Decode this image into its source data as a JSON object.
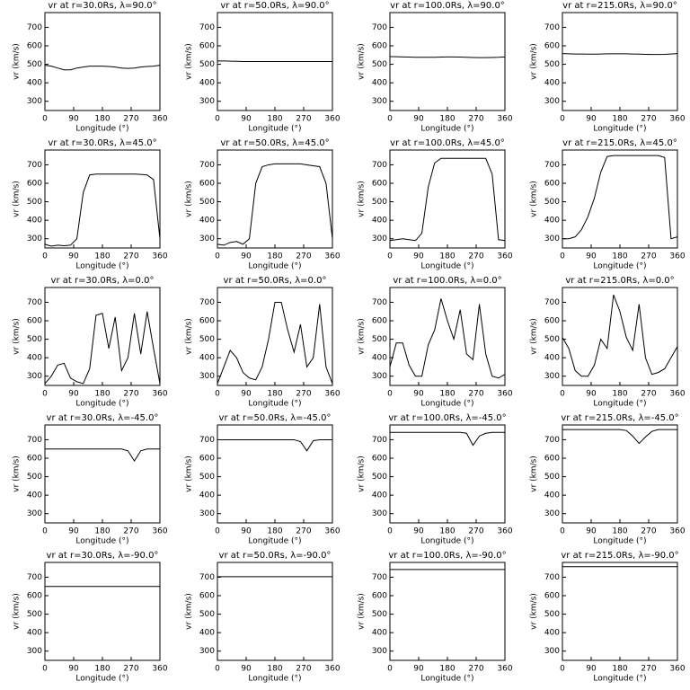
{
  "chart_data": [
    {
      "type": "line",
      "title": "vr at r=30.0Rs, λ=90.0°",
      "xlabel": "Longitude (°)",
      "ylabel": "vr (km/s)",
      "color": "#000000",
      "xlim": [
        0,
        360
      ],
      "ylim": [
        250,
        780
      ],
      "xticks": [
        0,
        90,
        180,
        270,
        360
      ],
      "yticks": [
        300,
        400,
        500,
        600,
        700
      ],
      "x": [
        0,
        20,
        40,
        60,
        80,
        100,
        120,
        140,
        160,
        180,
        200,
        220,
        240,
        260,
        280,
        300,
        320,
        340,
        360
      ],
      "values": [
        495,
        490,
        480,
        470,
        470,
        480,
        485,
        490,
        490,
        490,
        488,
        485,
        480,
        478,
        480,
        485,
        488,
        490,
        495
      ]
    },
    {
      "type": "line",
      "title": "vr at r=50.0Rs, λ=90.0°",
      "xlabel": "Longitude (°)",
      "ylabel": "vr (km/s)",
      "color": "#000000",
      "xlim": [
        0,
        360
      ],
      "ylim": [
        250,
        780
      ],
      "xticks": [
        0,
        90,
        180,
        270,
        360
      ],
      "yticks": [
        300,
        400,
        500,
        600,
        700
      ],
      "x": [
        0,
        20,
        40,
        60,
        80,
        100,
        120,
        140,
        160,
        180,
        200,
        220,
        240,
        260,
        280,
        300,
        320,
        340,
        360
      ],
      "values": [
        518,
        518,
        517,
        516,
        515,
        515,
        515,
        515,
        515,
        515,
        515,
        515,
        515,
        515,
        515,
        515,
        515,
        515,
        515
      ]
    },
    {
      "type": "line",
      "title": "vr at r=100.0Rs, λ=90.0°",
      "xlabel": "Longitude (°)",
      "ylabel": "vr (km/s)",
      "color": "#000000",
      "xlim": [
        0,
        360
      ],
      "ylim": [
        250,
        780
      ],
      "xticks": [
        0,
        90,
        180,
        270,
        360
      ],
      "yticks": [
        300,
        400,
        500,
        600,
        700
      ],
      "x": [
        0,
        20,
        40,
        60,
        80,
        100,
        120,
        140,
        160,
        180,
        200,
        220,
        240,
        260,
        280,
        300,
        320,
        340,
        360
      ],
      "values": [
        542,
        541,
        540,
        539,
        538,
        538,
        538,
        538,
        539,
        540,
        540,
        539,
        538,
        537,
        536,
        536,
        537,
        538,
        540
      ]
    },
    {
      "type": "line",
      "title": "vr at r=215.0Rs, λ=90.0°",
      "xlabel": "Longitude (°)",
      "ylabel": "vr (km/s)",
      "color": "#000000",
      "xlim": [
        0,
        360
      ],
      "ylim": [
        250,
        780
      ],
      "xticks": [
        0,
        90,
        180,
        270,
        360
      ],
      "yticks": [
        300,
        400,
        500,
        600,
        700
      ],
      "x": [
        0,
        20,
        40,
        60,
        80,
        100,
        120,
        140,
        160,
        180,
        200,
        220,
        240,
        260,
        280,
        300,
        320,
        340,
        360
      ],
      "values": [
        558,
        557,
        556,
        556,
        555,
        555,
        556,
        557,
        557,
        557,
        557,
        556,
        555,
        554,
        553,
        553,
        554,
        556,
        558
      ]
    },
    {
      "type": "line",
      "title": "vr at r=30.0Rs, λ=45.0°",
      "xlabel": "Longitude (°)",
      "ylabel": "vr (km/s)",
      "color": "#000000",
      "xlim": [
        0,
        360
      ],
      "ylim": [
        250,
        780
      ],
      "xticks": [
        0,
        90,
        180,
        270,
        360
      ],
      "yticks": [
        300,
        400,
        500,
        600,
        700
      ],
      "x": [
        0,
        20,
        40,
        60,
        80,
        100,
        120,
        140,
        160,
        180,
        200,
        220,
        240,
        260,
        280,
        300,
        320,
        340,
        360
      ],
      "values": [
        270,
        260,
        265,
        262,
        265,
        300,
        550,
        645,
        650,
        650,
        650,
        650,
        650,
        650,
        650,
        648,
        645,
        620,
        300
      ]
    },
    {
      "type": "line",
      "title": "vr at r=50.0Rs, λ=45.0°",
      "xlabel": "Longitude (°)",
      "ylabel": "vr (km/s)",
      "color": "#000000",
      "xlim": [
        0,
        360
      ],
      "ylim": [
        250,
        780
      ],
      "xticks": [
        0,
        90,
        180,
        270,
        360
      ],
      "yticks": [
        300,
        400,
        500,
        600,
        700
      ],
      "x": [
        0,
        20,
        40,
        60,
        80,
        100,
        120,
        140,
        160,
        180,
        200,
        220,
        240,
        260,
        280,
        300,
        320,
        340,
        360
      ],
      "values": [
        270,
        265,
        280,
        285,
        270,
        300,
        600,
        690,
        700,
        705,
        705,
        705,
        705,
        705,
        700,
        695,
        690,
        600,
        300
      ]
    },
    {
      "type": "line",
      "title": "vr at r=100.0Rs, λ=45.0°",
      "xlabel": "Longitude (°)",
      "ylabel": "vr (km/s)",
      "color": "#000000",
      "xlim": [
        0,
        360
      ],
      "ylim": [
        250,
        780
      ],
      "xticks": [
        0,
        90,
        180,
        270,
        360
      ],
      "yticks": [
        300,
        400,
        500,
        600,
        700
      ],
      "x": [
        0,
        20,
        40,
        60,
        80,
        100,
        120,
        140,
        160,
        180,
        200,
        220,
        240,
        260,
        280,
        300,
        320,
        340,
        360
      ],
      "values": [
        290,
        295,
        300,
        295,
        290,
        330,
        580,
        710,
        735,
        735,
        735,
        735,
        735,
        735,
        735,
        735,
        650,
        295,
        290
      ]
    },
    {
      "type": "line",
      "title": "vr at r=215.0Rs, λ=45.0°",
      "xlabel": "Longitude (°)",
      "ylabel": "vr (km/s)",
      "color": "#000000",
      "xlim": [
        0,
        360
      ],
      "ylim": [
        250,
        780
      ],
      "xticks": [
        0,
        90,
        180,
        270,
        360
      ],
      "yticks": [
        300,
        400,
        500,
        600,
        700
      ],
      "x": [
        0,
        20,
        40,
        60,
        80,
        100,
        120,
        140,
        160,
        180,
        200,
        220,
        240,
        260,
        280,
        300,
        320,
        340,
        360
      ],
      "values": [
        300,
        300,
        310,
        350,
        420,
        520,
        660,
        745,
        750,
        750,
        750,
        750,
        750,
        750,
        750,
        750,
        740,
        300,
        310
      ]
    },
    {
      "type": "line",
      "title": "vr at r=30.0Rs, λ=0.0°",
      "xlabel": "Longitude (°)",
      "ylabel": "vr (km/s)",
      "color": "#000000",
      "xlim": [
        0,
        360
      ],
      "ylim": [
        250,
        780
      ],
      "xticks": [
        0,
        90,
        180,
        270,
        360
      ],
      "yticks": [
        300,
        400,
        500,
        600,
        700
      ],
      "x": [
        0,
        20,
        40,
        60,
        80,
        100,
        120,
        140,
        160,
        180,
        200,
        220,
        240,
        260,
        280,
        300,
        320,
        340,
        360
      ],
      "values": [
        260,
        300,
        360,
        370,
        290,
        270,
        260,
        340,
        630,
        640,
        450,
        620,
        330,
        400,
        640,
        420,
        650,
        450,
        260
      ]
    },
    {
      "type": "line",
      "title": "vr at r=50.0Rs, λ=0.0°",
      "xlabel": "Longitude (°)",
      "ylabel": "vr (km/s)",
      "color": "#000000",
      "xlim": [
        0,
        360
      ],
      "ylim": [
        250,
        780
      ],
      "xticks": [
        0,
        90,
        180,
        270,
        360
      ],
      "yticks": [
        300,
        400,
        500,
        600,
        700
      ],
      "x": [
        0,
        20,
        40,
        60,
        80,
        100,
        120,
        140,
        160,
        180,
        200,
        220,
        240,
        260,
        280,
        300,
        320,
        340,
        360
      ],
      "values": [
        260,
        350,
        440,
        400,
        320,
        290,
        280,
        350,
        500,
        700,
        700,
        550,
        430,
        580,
        350,
        400,
        690,
        350,
        260
      ]
    },
    {
      "type": "line",
      "title": "vr at r=100.0Rs, λ=0.0°",
      "xlabel": "Longitude (°)",
      "ylabel": "vr (km/s)",
      "color": "#000000",
      "xlim": [
        0,
        360
      ],
      "ylim": [
        250,
        780
      ],
      "xticks": [
        0,
        90,
        180,
        270,
        360
      ],
      "yticks": [
        300,
        400,
        500,
        600,
        700
      ],
      "x": [
        0,
        20,
        40,
        60,
        80,
        100,
        120,
        140,
        160,
        180,
        200,
        220,
        240,
        260,
        280,
        300,
        320,
        340,
        360
      ],
      "values": [
        350,
        480,
        480,
        360,
        300,
        300,
        470,
        550,
        720,
        600,
        500,
        660,
        420,
        390,
        690,
        420,
        300,
        290,
        310
      ]
    },
    {
      "type": "line",
      "title": "vr at r=215.0Rs, λ=0.0°",
      "xlabel": "Longitude (°)",
      "ylabel": "vr (km/s)",
      "color": "#000000",
      "xlim": [
        0,
        360
      ],
      "ylim": [
        250,
        780
      ],
      "xticks": [
        0,
        90,
        180,
        270,
        360
      ],
      "yticks": [
        300,
        400,
        500,
        600,
        700
      ],
      "x": [
        0,
        20,
        40,
        60,
        80,
        100,
        120,
        140,
        160,
        180,
        200,
        220,
        240,
        260,
        280,
        300,
        320,
        340,
        360
      ],
      "values": [
        510,
        450,
        330,
        300,
        300,
        360,
        500,
        450,
        740,
        650,
        510,
        440,
        690,
        400,
        310,
        320,
        340,
        400,
        460
      ]
    },
    {
      "type": "line",
      "title": "vr at r=30.0Rs, λ=-45.0°",
      "xlabel": "Longitude (°)",
      "ylabel": "vr (km/s)",
      "color": "#000000",
      "xlim": [
        0,
        360
      ],
      "ylim": [
        250,
        780
      ],
      "xticks": [
        0,
        90,
        180,
        270,
        360
      ],
      "yticks": [
        300,
        400,
        500,
        600,
        700
      ],
      "x": [
        0,
        20,
        40,
        60,
        80,
        100,
        120,
        140,
        160,
        180,
        200,
        220,
        240,
        260,
        280,
        300,
        320,
        340,
        360
      ],
      "values": [
        650,
        650,
        650,
        650,
        650,
        650,
        650,
        650,
        650,
        650,
        650,
        650,
        650,
        640,
        585,
        640,
        650,
        650,
        650
      ]
    },
    {
      "type": "line",
      "title": "vr at r=50.0Rs, λ=-45.0°",
      "xlabel": "Longitude (°)",
      "ylabel": "vr (km/s)",
      "color": "#000000",
      "xlim": [
        0,
        360
      ],
      "ylim": [
        250,
        780
      ],
      "xticks": [
        0,
        90,
        180,
        270,
        360
      ],
      "yticks": [
        300,
        400,
        500,
        600,
        700
      ],
      "x": [
        0,
        20,
        40,
        60,
        80,
        100,
        120,
        140,
        160,
        180,
        200,
        220,
        240,
        260,
        280,
        300,
        320,
        340,
        360
      ],
      "values": [
        700,
        700,
        700,
        700,
        700,
        700,
        700,
        700,
        700,
        700,
        700,
        700,
        700,
        690,
        640,
        695,
        700,
        700,
        700
      ]
    },
    {
      "type": "line",
      "title": "vr at r=100.0Rs, λ=-45.0°",
      "xlabel": "Longitude (°)",
      "ylabel": "vr (km/s)",
      "color": "#000000",
      "xlim": [
        0,
        360
      ],
      "ylim": [
        250,
        780
      ],
      "xticks": [
        0,
        90,
        180,
        270,
        360
      ],
      "yticks": [
        300,
        400,
        500,
        600,
        700
      ],
      "x": [
        0,
        20,
        40,
        60,
        80,
        100,
        120,
        140,
        160,
        180,
        200,
        220,
        240,
        260,
        280,
        300,
        320,
        340,
        360
      ],
      "values": [
        740,
        740,
        740,
        740,
        740,
        740,
        740,
        740,
        740,
        740,
        740,
        740,
        735,
        670,
        720,
        735,
        740,
        740,
        740
      ]
    },
    {
      "type": "line",
      "title": "vr at r=215.0Rs, λ=-45.0°",
      "xlabel": "Longitude (°)",
      "ylabel": "vr (km/s)",
      "color": "#000000",
      "xlim": [
        0,
        360
      ],
      "ylim": [
        250,
        780
      ],
      "xticks": [
        0,
        90,
        180,
        270,
        360
      ],
      "yticks": [
        300,
        400,
        500,
        600,
        700
      ],
      "x": [
        0,
        20,
        40,
        60,
        80,
        100,
        120,
        140,
        160,
        180,
        200,
        220,
        240,
        260,
        280,
        300,
        320,
        340,
        360
      ],
      "values": [
        755,
        755,
        755,
        755,
        755,
        755,
        755,
        755,
        755,
        755,
        750,
        720,
        680,
        715,
        745,
        755,
        755,
        755,
        755
      ]
    },
    {
      "type": "line",
      "title": "vr at r=30.0Rs, λ=-90.0°",
      "xlabel": "Longitude (°)",
      "ylabel": "vr (km/s)",
      "color": "#000000",
      "xlim": [
        0,
        360
      ],
      "ylim": [
        250,
        780
      ],
      "xticks": [
        0,
        90,
        180,
        270,
        360
      ],
      "yticks": [
        300,
        400,
        500,
        600,
        700
      ],
      "x": [
        0,
        20,
        40,
        60,
        80,
        100,
        120,
        140,
        160,
        180,
        200,
        220,
        240,
        260,
        280,
        300,
        320,
        340,
        360
      ],
      "values": [
        650,
        650,
        650,
        650,
        650,
        650,
        650,
        650,
        650,
        650,
        650,
        650,
        650,
        650,
        650,
        650,
        650,
        650,
        650
      ]
    },
    {
      "type": "line",
      "title": "vr at r=50.0Rs, λ=-90.0°",
      "xlabel": "Longitude (°)",
      "ylabel": "vr (km/s)",
      "color": "#000000",
      "xlim": [
        0,
        360
      ],
      "ylim": [
        250,
        780
      ],
      "xticks": [
        0,
        90,
        180,
        270,
        360
      ],
      "yticks": [
        300,
        400,
        500,
        600,
        700
      ],
      "x": [
        0,
        20,
        40,
        60,
        80,
        100,
        120,
        140,
        160,
        180,
        200,
        220,
        240,
        260,
        280,
        300,
        320,
        340,
        360
      ],
      "values": [
        703,
        703,
        703,
        703,
        703,
        703,
        703,
        703,
        703,
        703,
        703,
        703,
        703,
        703,
        703,
        703,
        703,
        703,
        703
      ]
    },
    {
      "type": "line",
      "title": "vr at r=100.0Rs, λ=-90.0°",
      "xlabel": "Longitude (°)",
      "ylabel": "vr (km/s)",
      "color": "#000000",
      "xlim": [
        0,
        360
      ],
      "ylim": [
        250,
        780
      ],
      "xticks": [
        0,
        90,
        180,
        270,
        360
      ],
      "yticks": [
        300,
        400,
        500,
        600,
        700
      ],
      "x": [
        0,
        20,
        40,
        60,
        80,
        100,
        120,
        140,
        160,
        180,
        200,
        220,
        240,
        260,
        280,
        300,
        320,
        340,
        360
      ],
      "values": [
        742,
        742,
        742,
        742,
        742,
        742,
        742,
        742,
        742,
        742,
        742,
        742,
        742,
        742,
        742,
        742,
        742,
        742,
        742
      ]
    },
    {
      "type": "line",
      "title": "vr at r=215.0Rs, λ=-90.0°",
      "xlabel": "Longitude (°)",
      "ylabel": "vr (km/s)",
      "color": "#000000",
      "xlim": [
        0,
        360
      ],
      "ylim": [
        250,
        780
      ],
      "xticks": [
        0,
        90,
        180,
        270,
        360
      ],
      "yticks": [
        300,
        400,
        500,
        600,
        700
      ],
      "x": [
        0,
        20,
        40,
        60,
        80,
        100,
        120,
        140,
        160,
        180,
        200,
        220,
        240,
        260,
        280,
        300,
        320,
        340,
        360
      ],
      "values": [
        757,
        757,
        757,
        757,
        757,
        757,
        757,
        757,
        757,
        757,
        757,
        757,
        757,
        757,
        757,
        757,
        757,
        757,
        757
      ]
    }
  ]
}
